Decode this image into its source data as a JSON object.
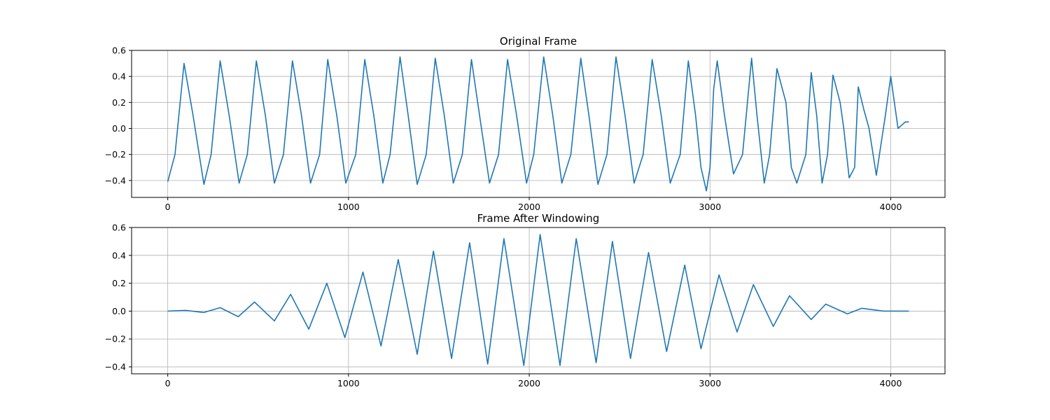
{
  "chart_data": [
    {
      "type": "line",
      "title": "Original Frame",
      "xlabel": "",
      "ylabel": "",
      "xlim": [
        -200,
        4300
      ],
      "ylim": [
        -0.53,
        0.6
      ],
      "xticks": [
        0,
        1000,
        2000,
        3000,
        4000
      ],
      "yticks": [
        -0.4,
        -0.2,
        0.0,
        0.2,
        0.4,
        0.6
      ],
      "xtick_labels": [
        "0",
        "1000",
        "2000",
        "3000",
        "4000"
      ],
      "ytick_labels": [
        "−0.4",
        "−0.2",
        "0.0",
        "0.2",
        "0.4",
        "0.6"
      ],
      "grid": true,
      "line_color": "#1f77b4",
      "series": [
        {
          "x": [
            0,
            40,
            90,
            140,
            200,
            240,
            290,
            340,
            395,
            440,
            490,
            540,
            590,
            640,
            690,
            740,
            790,
            840,
            885,
            935,
            985,
            1040,
            1090,
            1140,
            1190,
            1230,
            1285,
            1330,
            1380,
            1430,
            1480,
            1530,
            1580,
            1630,
            1680,
            1725,
            1780,
            1830,
            1880,
            1930,
            1985,
            2025,
            2080,
            2130,
            2180,
            2230,
            2285,
            2330,
            2380,
            2430,
            2480,
            2530,
            2580,
            2630,
            2680,
            2730,
            2780,
            2835,
            2880,
            2920,
            2950,
            2980,
            3000,
            3020,
            3040,
            3080,
            3130,
            3180,
            3230,
            3260,
            3300,
            3330,
            3370,
            3420,
            3450,
            3480,
            3530,
            3560,
            3590,
            3620,
            3650,
            3680,
            3720,
            3740,
            3770,
            3800,
            3820,
            3850,
            3880,
            3920,
            3970,
            4000,
            4040,
            4080,
            4100
          ],
          "y": [
            -0.41,
            -0.2,
            0.5,
            0.1,
            -0.43,
            -0.2,
            0.52,
            0.1,
            -0.42,
            -0.2,
            0.52,
            0.1,
            -0.42,
            -0.2,
            0.52,
            0.1,
            -0.42,
            -0.2,
            0.53,
            0.1,
            -0.42,
            -0.2,
            0.53,
            0.1,
            -0.42,
            -0.2,
            0.55,
            0.1,
            -0.43,
            -0.2,
            0.54,
            0.1,
            -0.42,
            -0.2,
            0.53,
            0.1,
            -0.42,
            -0.2,
            0.53,
            0.1,
            -0.42,
            -0.2,
            0.55,
            0.1,
            -0.42,
            -0.2,
            0.54,
            0.1,
            -0.43,
            -0.2,
            0.55,
            0.1,
            -0.42,
            -0.2,
            0.53,
            0.1,
            -0.42,
            -0.2,
            0.52,
            0.1,
            -0.3,
            -0.48,
            -0.3,
            0.3,
            0.52,
            0.1,
            -0.35,
            -0.2,
            0.54,
            0.1,
            -0.42,
            -0.2,
            0.46,
            0.2,
            -0.3,
            -0.42,
            -0.2,
            0.43,
            0.1,
            -0.42,
            -0.2,
            0.41,
            0.2,
            0.0,
            -0.38,
            -0.3,
            0.32,
            0.15,
            0.0,
            -0.36,
            0.1,
            0.4,
            0.0,
            0.05,
            0.05
          ]
        }
      ]
    },
    {
      "type": "line",
      "title": "Frame After Windowing",
      "xlabel": "",
      "ylabel": "",
      "xlim": [
        -200,
        4300
      ],
      "ylim": [
        -0.45,
        0.6
      ],
      "xticks": [
        0,
        1000,
        2000,
        3000,
        4000
      ],
      "yticks": [
        -0.4,
        -0.2,
        0.0,
        0.2,
        0.4,
        0.6
      ],
      "xtick_labels": [
        "0",
        "1000",
        "2000",
        "3000",
        "4000"
      ],
      "ytick_labels": [
        "−0.4",
        "−0.2",
        "0.0",
        "0.2",
        "0.4",
        "0.6"
      ],
      "grid": true,
      "line_color": "#1f77b4",
      "series": [
        {
          "x": [
            0,
            100,
            200,
            290,
            390,
            480,
            590,
            680,
            780,
            880,
            980,
            1080,
            1180,
            1275,
            1380,
            1470,
            1570,
            1670,
            1770,
            1860,
            1970,
            2060,
            2170,
            2260,
            2370,
            2460,
            2560,
            2660,
            2760,
            2860,
            2950,
            3050,
            3150,
            3240,
            3350,
            3440,
            3560,
            3640,
            3760,
            3840,
            3960,
            4100
          ],
          "y": [
            0.0,
            0.005,
            -0.01,
            0.025,
            -0.04,
            0.065,
            -0.07,
            0.12,
            -0.13,
            0.2,
            -0.19,
            0.28,
            -0.25,
            0.37,
            -0.31,
            0.43,
            -0.34,
            0.49,
            -0.38,
            0.52,
            -0.39,
            0.55,
            -0.39,
            0.52,
            -0.37,
            0.5,
            -0.34,
            0.42,
            -0.29,
            0.33,
            -0.27,
            0.26,
            -0.15,
            0.19,
            -0.11,
            0.11,
            -0.06,
            0.05,
            -0.02,
            0.02,
            0.0,
            0.0
          ]
        }
      ]
    }
  ]
}
